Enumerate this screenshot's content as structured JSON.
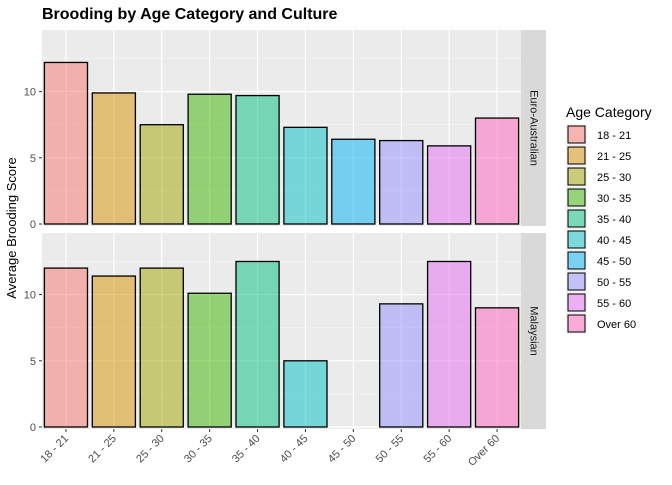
{
  "chart_data": {
    "type": "bar",
    "title": "Brooding by Age Category and Culture",
    "xlabel": "",
    "ylabel": "Average Brooding Score",
    "ylim": [
      0,
      14.5
    ],
    "yticks": [
      0,
      5,
      10
    ],
    "grid": true,
    "legend_position": "right",
    "legend_title": "Age Category",
    "categories": [
      "18 - 21",
      "21 - 25",
      "25 - 30",
      "30 - 35",
      "35 - 40",
      "40 - 45",
      "45 - 50",
      "50 - 55",
      "55 - 60",
      "Over 60"
    ],
    "colors": [
      "#F8766D",
      "#D89000",
      "#A3A500",
      "#39B600",
      "#00BF7D",
      "#00BFC4",
      "#00B0F6",
      "#9590FF",
      "#E76BF3",
      "#FF62BC"
    ],
    "facets": [
      {
        "label": "Euro-Australian",
        "values": [
          12.2,
          9.9,
          7.5,
          9.8,
          9.7,
          7.3,
          6.4,
          6.3,
          5.9,
          8.0
        ]
      },
      {
        "label": "Malaysian",
        "values": [
          12.0,
          11.4,
          12.0,
          10.1,
          12.5,
          5.0,
          null,
          9.3,
          12.5,
          9.0
        ]
      }
    ]
  }
}
